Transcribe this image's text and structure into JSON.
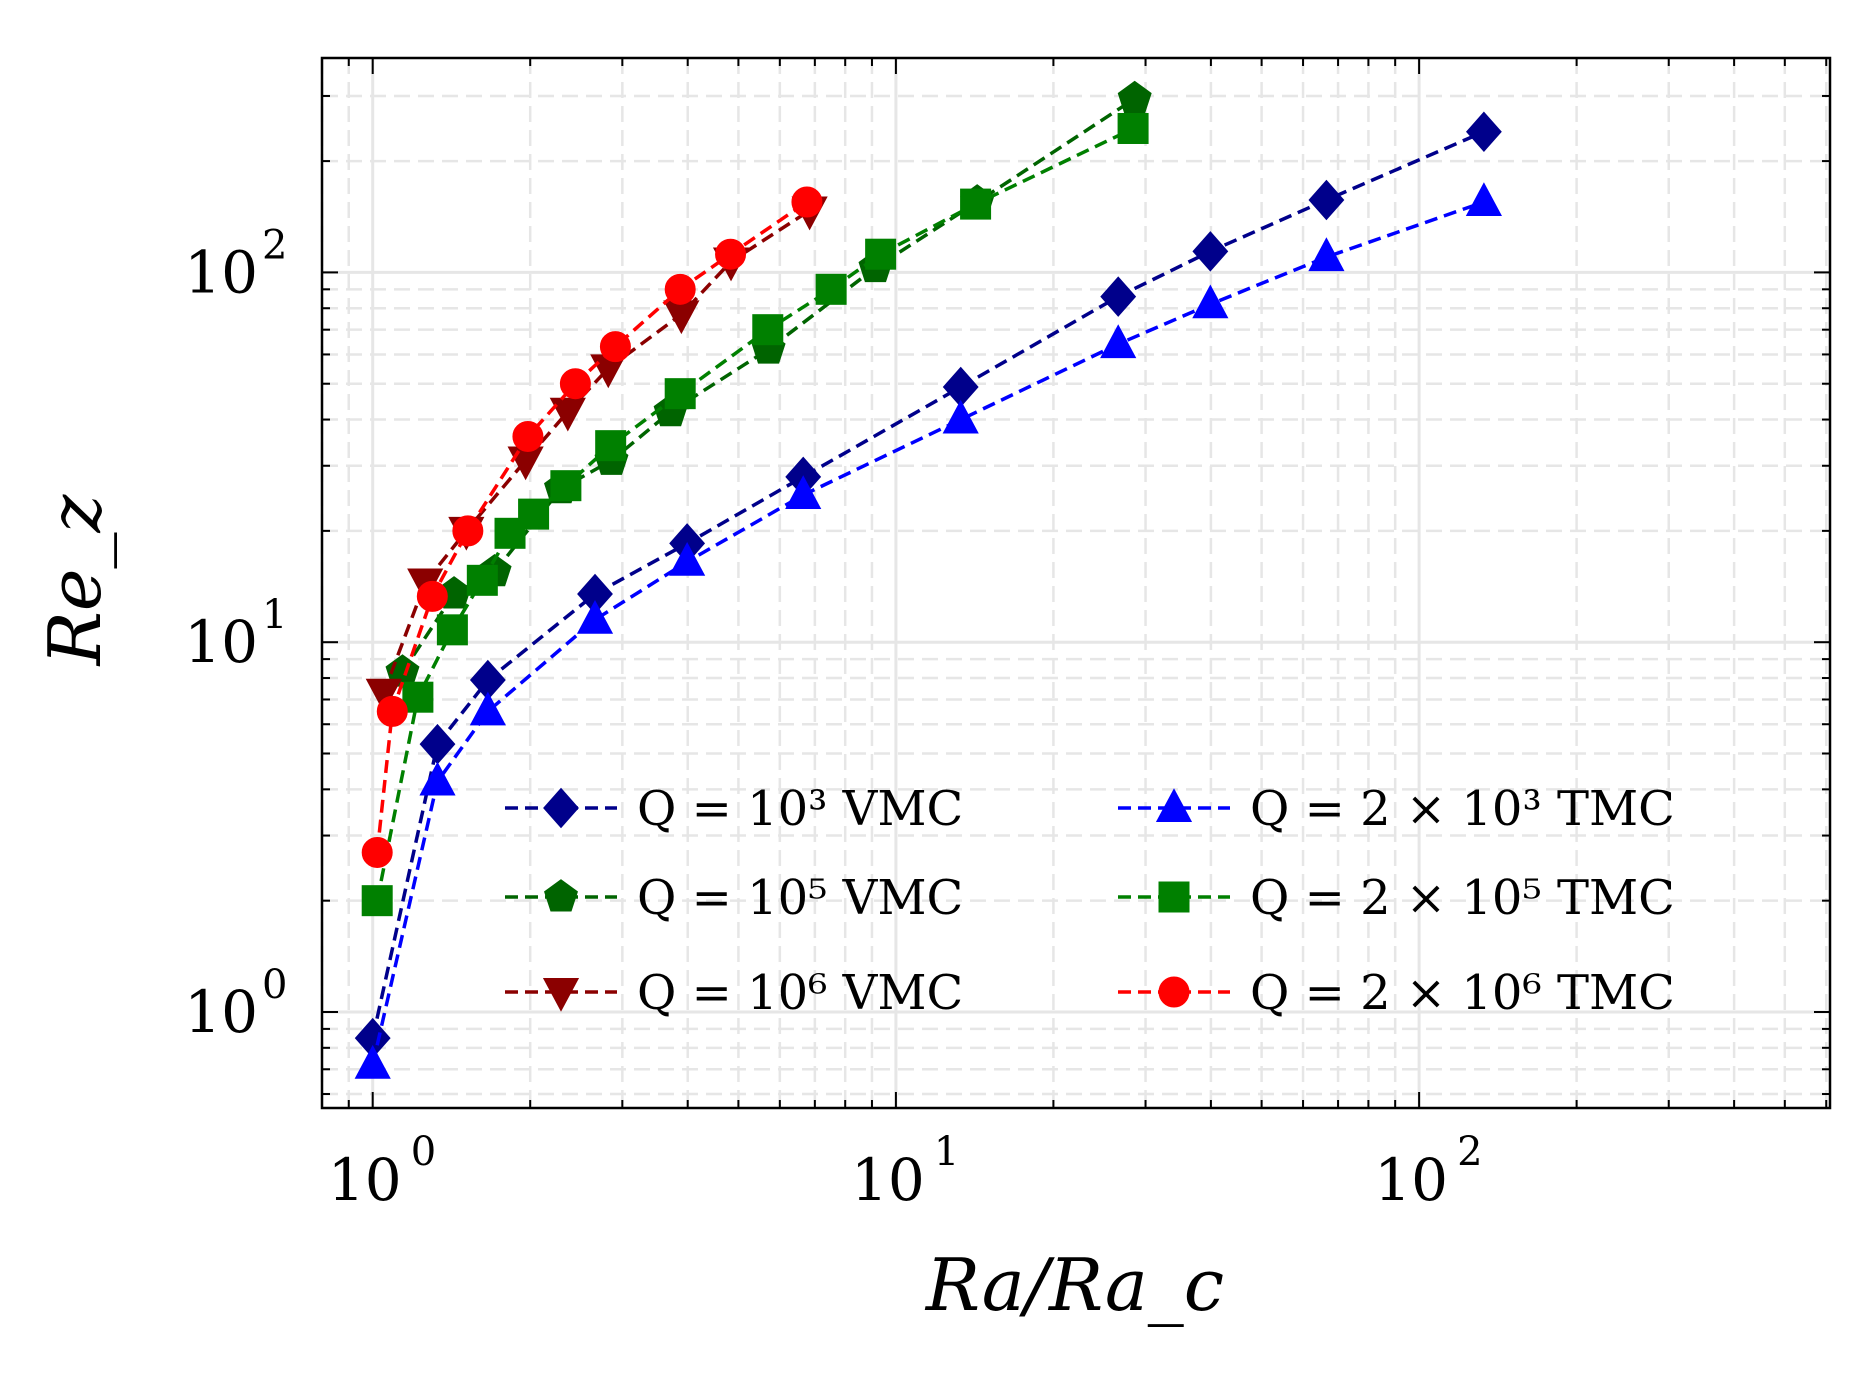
{
  "chart_data": {
    "type": "line",
    "xscale": "log",
    "yscale": "log",
    "xlim": [
      0.8,
      610
    ],
    "ylim": [
      0.55,
      380
    ],
    "xlabel": "Ra/Ra_c",
    "ylabel": "Re_z",
    "grid": true,
    "legend_position": "center-right",
    "x_ticks": [
      {
        "base": "10",
        "exp": "0"
      },
      {
        "base": "10",
        "exp": "1"
      },
      {
        "base": "10",
        "exp": "2"
      }
    ],
    "y_ticks": [
      {
        "base": "10",
        "exp": "0"
      },
      {
        "base": "10",
        "exp": "1"
      },
      {
        "base": "10",
        "exp": "2"
      }
    ],
    "series": [
      {
        "name": "Q = 10^3 VMC",
        "legend_text": "Q = 10³ VMC",
        "color": "#00008b",
        "marker": "diamond",
        "x": [
          1.0,
          1.33,
          1.66,
          2.66,
          3.99,
          6.65,
          13.3,
          26.6,
          39.9,
          66.5,
          133
        ],
        "y": [
          0.85,
          5.3,
          7.9,
          13.5,
          18.5,
          28,
          49,
          86,
          114,
          157,
          240
        ]
      },
      {
        "name": "Q = 10^5 VMC",
        "legend_text": "Q = 10⁵ VMC",
        "color": "#006400",
        "marker": "pentagon",
        "x": [
          1.14,
          1.43,
          1.71,
          2.29,
          2.86,
          3.71,
          5.71,
          9.14,
          14.3,
          28.6
        ],
        "y": [
          8.3,
          13.5,
          15.5,
          26,
          31,
          42,
          62,
          103,
          155,
          295
        ]
      },
      {
        "name": "Q = 10^6 VMC",
        "legend_text": "Q = 10⁶ VMC",
        "color": "#8b0000",
        "marker": "triangle-down",
        "x": [
          1.05,
          1.26,
          1.51,
          1.96,
          2.36,
          2.82,
          3.89,
          4.84,
          6.84
        ],
        "y": [
          7.3,
          14.5,
          20,
          31,
          42,
          55,
          77,
          107,
          147
        ]
      },
      {
        "name": "Q = 2 x 10^3 TMC",
        "legend_text": "Q = 2 × 10³ TMC",
        "color": "#0000ff",
        "marker": "triangle-up",
        "x": [
          1.0,
          1.33,
          1.66,
          2.66,
          3.99,
          6.65,
          13.3,
          26.6,
          39.9,
          66.5,
          133
        ],
        "y": [
          0.72,
          4.2,
          6.5,
          11.5,
          16.5,
          25,
          40,
          64,
          82,
          110,
          155
        ]
      },
      {
        "name": "Q = 2 x 10^5 TMC",
        "legend_text": "Q = 2 × 10⁵ TMC",
        "color": "#008000",
        "marker": "square",
        "x": [
          1.02,
          1.22,
          1.42,
          1.62,
          1.83,
          2.03,
          2.34,
          2.85,
          3.87,
          5.69,
          7.52,
          9.35,
          14.2,
          28.4
        ],
        "y": [
          2.0,
          7.1,
          10.8,
          14.7,
          19.7,
          22.2,
          26.5,
          34,
          47,
          70,
          90,
          112,
          153,
          245
        ]
      },
      {
        "name": "Q = 2 x 10^6 TMC",
        "legend_text": "Q = 2 × 10⁶ TMC",
        "color": "#ff0000",
        "marker": "circle",
        "x": [
          1.02,
          1.09,
          1.3,
          1.52,
          1.98,
          2.44,
          2.91,
          3.87,
          4.83,
          6.76
        ],
        "y": [
          2.7,
          6.5,
          13.3,
          20,
          36,
          50,
          63,
          90,
          112,
          155
        ]
      }
    ]
  }
}
